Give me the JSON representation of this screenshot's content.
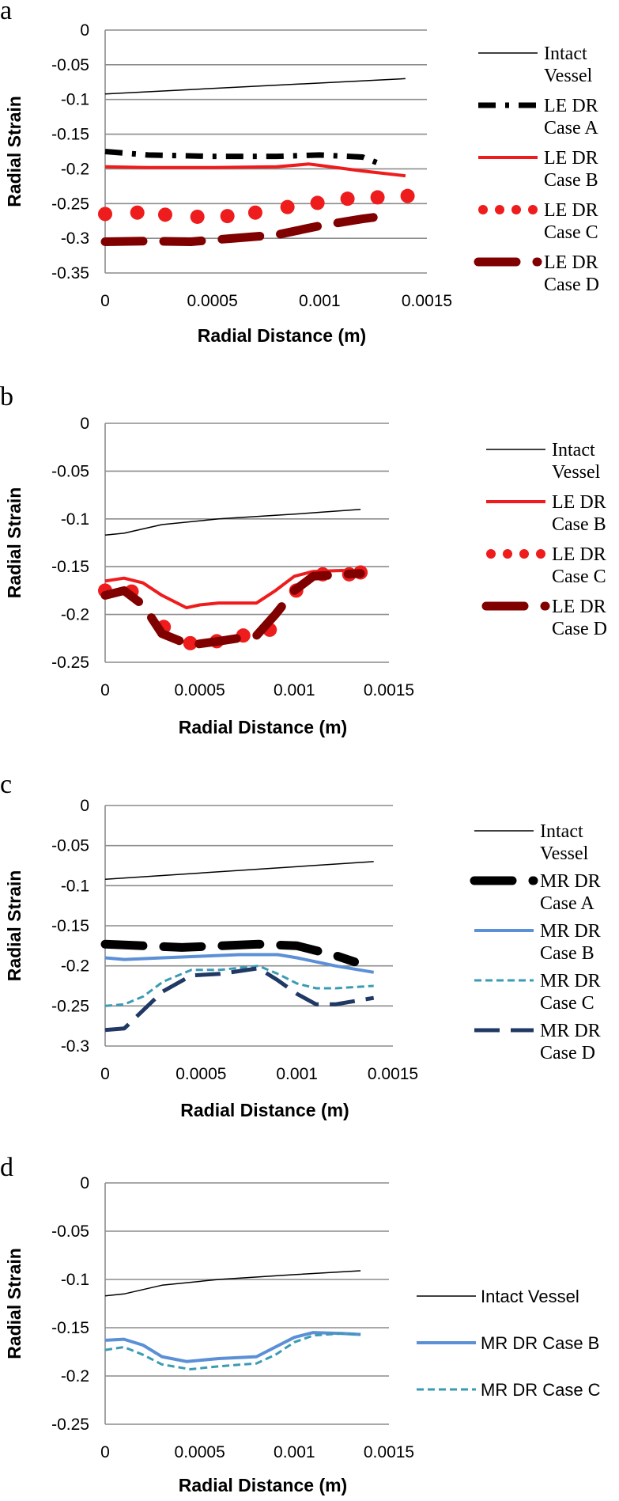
{
  "chart_data": [
    {
      "panel": "a",
      "type": "line",
      "xlabel": "Radial Distance (m)",
      "ylabel": "Radial Strain",
      "xlim": [
        0,
        0.0015
      ],
      "ylim": [
        -0.35,
        0
      ],
      "x_ticks": [
        "0",
        "0.0005",
        "0.001",
        "0.0015"
      ],
      "y_ticks": [
        "0",
        "-0.05",
        "-0.1",
        "-0.15",
        "-0.2",
        "-0.25",
        "-0.3",
        "-0.35"
      ],
      "series": [
        {
          "name": "Intact Vessel",
          "legend_lines": [
            "Intact",
            "Vessel"
          ],
          "color": "#000000",
          "style": "thin",
          "x": [
            0,
            0.0014
          ],
          "y": [
            -0.092,
            -0.07
          ]
        },
        {
          "name": "LE DR Case A",
          "legend_lines": [
            "LE DR",
            "Case A"
          ],
          "color": "#000000",
          "style": "dashdot",
          "x": [
            0,
            0.0002,
            0.0005,
            0.0008,
            0.001,
            0.0012,
            0.0013
          ],
          "y": [
            -0.175,
            -0.18,
            -0.182,
            -0.182,
            -0.18,
            -0.183,
            -0.195
          ]
        },
        {
          "name": "LE DR Case B",
          "legend_lines": [
            "LE DR",
            "Case B"
          ],
          "color": "#ee1c1c",
          "style": "solid",
          "x": [
            0,
            0.0002,
            0.0005,
            0.0008,
            0.00095,
            0.001,
            0.0012,
            0.0014
          ],
          "y": [
            -0.197,
            -0.198,
            -0.198,
            -0.197,
            -0.193,
            -0.195,
            -0.203,
            -0.21
          ]
        },
        {
          "name": "LE DR Case C",
          "legend_lines": [
            "LE DR",
            "Case C"
          ],
          "color": "#ee1c1c",
          "style": "dots",
          "x": [
            0,
            0.00015,
            0.00028,
            0.00043,
            0.00057,
            0.0007,
            0.00085,
            0.00099,
            0.00113,
            0.00127,
            0.00141
          ],
          "y": [
            -0.265,
            -0.263,
            -0.266,
            -0.269,
            -0.268,
            -0.263,
            -0.255,
            -0.249,
            -0.243,
            -0.241,
            -0.239
          ]
        },
        {
          "name": "LE DR Case D",
          "legend_lines": [
            "LE DR",
            "Case D"
          ],
          "color": "#800000",
          "style": "thickdash",
          "x": [
            0,
            0.0002,
            0.0004,
            0.0006,
            0.0008,
            0.001,
            0.0012,
            0.00125
          ],
          "y": [
            -0.305,
            -0.304,
            -0.305,
            -0.3,
            -0.295,
            -0.282,
            -0.272,
            -0.27
          ]
        }
      ]
    },
    {
      "panel": "b",
      "type": "line",
      "xlabel": "Radial Distance (m)",
      "ylabel": "Radial Strain",
      "xlim": [
        0,
        0.0015
      ],
      "ylim": [
        -0.25,
        0
      ],
      "x_ticks": [
        "0",
        "0.0005",
        "0.001",
        "0.0015"
      ],
      "y_ticks": [
        "0",
        "-0.05",
        "-0.1",
        "-0.15",
        "-0.2",
        "-0.25"
      ],
      "series": [
        {
          "name": "Intact Vessel",
          "legend_lines": [
            "Intact",
            "Vessel"
          ],
          "color": "#000000",
          "style": "thin",
          "x": [
            0,
            0.0001,
            0.0003,
            0.0006,
            0.001,
            0.00135
          ],
          "y": [
            -0.117,
            -0.115,
            -0.106,
            -0.1,
            -0.095,
            -0.09
          ]
        },
        {
          "name": "LE DR Case B",
          "legend_lines": [
            "LE DR",
            "Case B"
          ],
          "color": "#ee1c1c",
          "style": "solid",
          "x": [
            0,
            0.0001,
            0.0002,
            0.0003,
            0.00043,
            0.0005,
            0.0006,
            0.0007,
            0.0008,
            0.0009,
            0.001,
            0.0011,
            0.00125,
            0.00135
          ],
          "y": [
            -0.165,
            -0.162,
            -0.167,
            -0.18,
            -0.193,
            -0.19,
            -0.188,
            -0.188,
            -0.188,
            -0.175,
            -0.16,
            -0.155,
            -0.154,
            -0.155
          ]
        },
        {
          "name": "LE DR Case C",
          "legend_lines": [
            "LE DR",
            "Case C"
          ],
          "color": "#ee1c1c",
          "style": "dots",
          "x": [
            0,
            0.00014,
            0.00031,
            0.00045,
            0.00059,
            0.00073,
            0.00087,
            0.00101,
            0.00115,
            0.00129,
            0.00135
          ],
          "y": [
            -0.175,
            -0.176,
            -0.213,
            -0.23,
            -0.228,
            -0.222,
            -0.216,
            -0.175,
            -0.158,
            -0.158,
            -0.156
          ]
        },
        {
          "name": "LE DR Case D",
          "legend_lines": [
            "LE DR",
            "Case D"
          ],
          "color": "#800000",
          "style": "thickdash",
          "x": [
            0,
            0.0001,
            0.0002,
            0.0003,
            0.00045,
            0.0006,
            0.0008,
            0.0009,
            0.001,
            0.0011,
            0.00125,
            0.00135
          ],
          "y": [
            -0.18,
            -0.175,
            -0.19,
            -0.22,
            -0.232,
            -0.228,
            -0.222,
            -0.2,
            -0.175,
            -0.16,
            -0.158,
            -0.157
          ]
        }
      ]
    },
    {
      "panel": "c",
      "type": "line",
      "xlabel": "Radial Distance (m)",
      "ylabel": "Radial Strain",
      "xlim": [
        0,
        0.0015
      ],
      "ylim": [
        -0.3,
        0
      ],
      "x_ticks": [
        "0",
        "0.0005",
        "0.001",
        "0.0015"
      ],
      "y_ticks": [
        "0",
        "-0.05",
        "-0.1",
        "-0.15",
        "-0.2",
        "-0.25",
        "-0.3"
      ],
      "series": [
        {
          "name": "Intact Vessel",
          "legend_lines": [
            "Intact",
            "Vessel"
          ],
          "color": "#000000",
          "style": "thin",
          "x": [
            0,
            0.0014
          ],
          "y": [
            -0.092,
            -0.07
          ]
        },
        {
          "name": "MR DR Case A",
          "legend_lines": [
            "MR DR",
            "Case A"
          ],
          "color": "#000000",
          "style": "thickdash",
          "x": [
            0,
            0.0002,
            0.0004,
            0.0006,
            0.0008,
            0.001,
            0.0012,
            0.0013
          ],
          "y": [
            -0.173,
            -0.175,
            -0.177,
            -0.175,
            -0.173,
            -0.175,
            -0.187,
            -0.195
          ]
        },
        {
          "name": "MR DR Case B",
          "legend_lines": [
            "MR DR",
            "Case B"
          ],
          "color": "#5b8fd6",
          "style": "solid",
          "x": [
            0,
            0.0001,
            0.0003,
            0.0005,
            0.0007,
            0.0009,
            0.001,
            0.0012,
            0.0014
          ],
          "y": [
            -0.19,
            -0.192,
            -0.19,
            -0.188,
            -0.186,
            -0.186,
            -0.19,
            -0.2,
            -0.208
          ]
        },
        {
          "name": "MR DR Case C",
          "legend_lines": [
            "MR DR",
            "Case C"
          ],
          "color": "#3a9bb5",
          "style": "shortdash",
          "x": [
            0,
            0.0001,
            0.0002,
            0.0003,
            0.00045,
            0.0006,
            0.0008,
            0.0009,
            0.001,
            0.0011,
            0.0012,
            0.0014
          ],
          "y": [
            -0.25,
            -0.248,
            -0.238,
            -0.22,
            -0.205,
            -0.205,
            -0.2,
            -0.21,
            -0.222,
            -0.228,
            -0.228,
            -0.225
          ]
        },
        {
          "name": "MR DR Case D",
          "legend_lines": [
            "MR DR",
            "Case D"
          ],
          "color": "#1f3864",
          "style": "longdash",
          "x": [
            0,
            0.0001,
            0.0002,
            0.0003,
            0.00045,
            0.0006,
            0.0008,
            0.0009,
            0.001,
            0.0011,
            0.0012,
            0.0014
          ],
          "y": [
            -0.28,
            -0.278,
            -0.255,
            -0.232,
            -0.212,
            -0.21,
            -0.203,
            -0.218,
            -0.235,
            -0.248,
            -0.248,
            -0.24
          ]
        }
      ]
    },
    {
      "panel": "d",
      "type": "line",
      "xlabel": "Radial Distance (m)",
      "ylabel": "Radial Strain",
      "xlim": [
        0,
        0.0015
      ],
      "ylim": [
        -0.25,
        0
      ],
      "x_ticks": [
        "0",
        "0.0005",
        "0.001",
        "0.0015"
      ],
      "y_ticks": [
        "0",
        "-0.05",
        "-0.1",
        "-0.15",
        "-0.2",
        "-0.25"
      ],
      "series": [
        {
          "name": "Intact Vessel",
          "legend_lines": [
            "Intact Vessel"
          ],
          "color": "#000000",
          "style": "thin",
          "x": [
            0,
            0.0001,
            0.0003,
            0.0006,
            0.001,
            0.00135
          ],
          "y": [
            -0.117,
            -0.115,
            -0.106,
            -0.1,
            -0.095,
            -0.091
          ]
        },
        {
          "name": "MR DR Case B",
          "legend_lines": [
            "MR DR Case B"
          ],
          "color": "#5b8fd6",
          "style": "solid",
          "x": [
            0,
            0.0001,
            0.0002,
            0.0003,
            0.00043,
            0.0006,
            0.0008,
            0.0009,
            0.001,
            0.0011,
            0.00125,
            0.00135
          ],
          "y": [
            -0.163,
            -0.162,
            -0.168,
            -0.18,
            -0.185,
            -0.182,
            -0.18,
            -0.17,
            -0.16,
            -0.155,
            -0.156,
            -0.157
          ]
        },
        {
          "name": "MR DR Case C",
          "legend_lines": [
            "MR DR Case C"
          ],
          "color": "#3a9bb5",
          "style": "shortdash",
          "x": [
            0,
            0.0001,
            0.0002,
            0.0003,
            0.00045,
            0.0006,
            0.0008,
            0.0009,
            0.001,
            0.0011,
            0.00125,
            0.00135
          ],
          "y": [
            -0.173,
            -0.17,
            -0.178,
            -0.188,
            -0.193,
            -0.19,
            -0.187,
            -0.178,
            -0.165,
            -0.158,
            -0.156,
            -0.157
          ]
        }
      ]
    }
  ]
}
